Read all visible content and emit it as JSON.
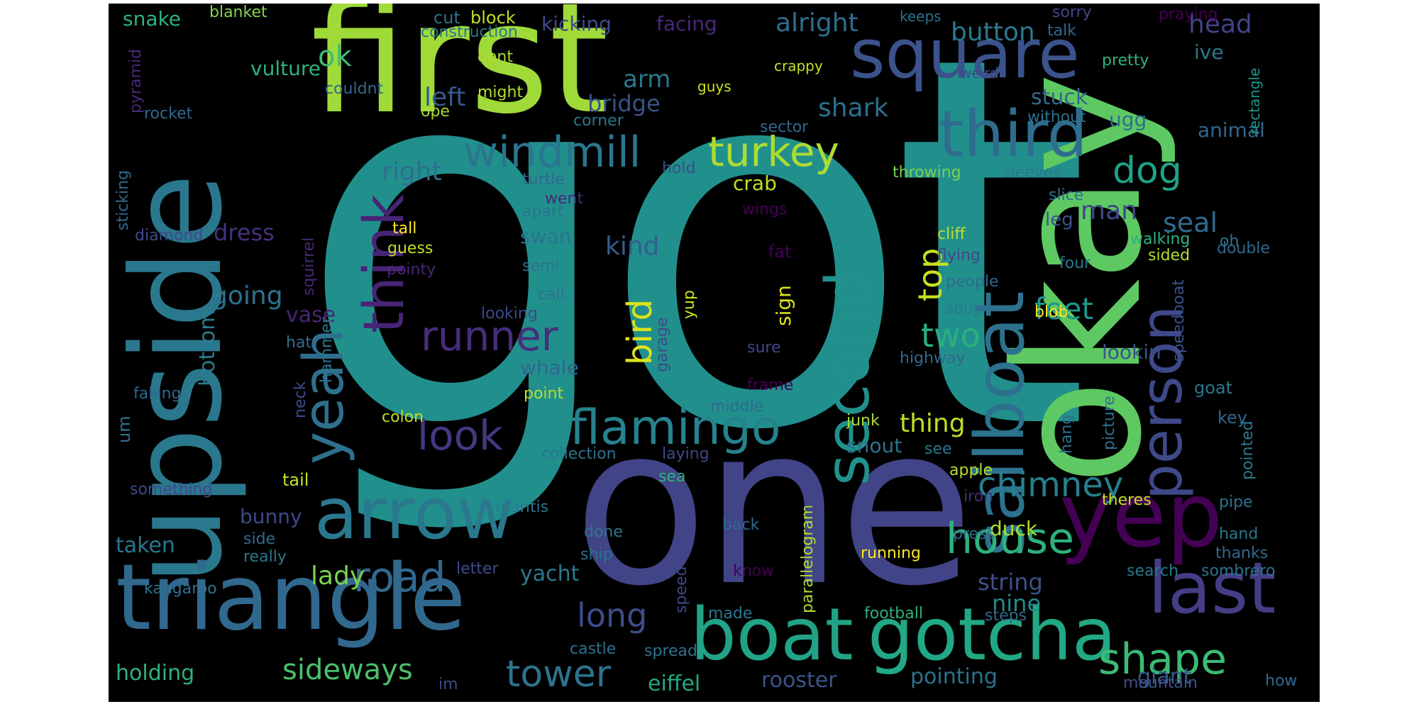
{
  "colors": {
    "background": "#000000",
    "palette": [
      "#440154",
      "#482878",
      "#3e4989",
      "#31688e",
      "#26828e",
      "#1f9e89",
      "#35b779",
      "#6ece58",
      "#b5de2b",
      "#fde725"
    ]
  },
  "words": [
    {
      "text": "got",
      "color": "#21908d"
    },
    {
      "text": "one",
      "color": "#414487"
    },
    {
      "text": "okay",
      "color": "#5ec962"
    },
    {
      "text": "first",
      "color": "#a0da39"
    },
    {
      "text": "upside",
      "color": "#2a788e"
    },
    {
      "text": "triangle",
      "color": "#31688e"
    },
    {
      "text": "boat",
      "color": "#20a386"
    },
    {
      "text": "gotcha",
      "color": "#22a884"
    },
    {
      "text": "yep",
      "color": "#440154"
    },
    {
      "text": "square",
      "color": "#3b528b"
    },
    {
      "text": "third",
      "color": "#2f6c8e"
    },
    {
      "text": "arrow",
      "color": "#2a788e"
    },
    {
      "text": "sailboat",
      "color": "#2c728e"
    },
    {
      "text": "second",
      "color": "#21918c"
    },
    {
      "text": "person",
      "color": "#3e4989"
    },
    {
      "text": "last",
      "color": "#433e85"
    },
    {
      "text": "flamingo",
      "color": "#26828e"
    },
    {
      "text": "think",
      "color": "#482475"
    },
    {
      "text": "yeah",
      "color": "#2e6f8e"
    },
    {
      "text": "windmill",
      "color": "#2a768e"
    },
    {
      "text": "house",
      "color": "#2db27d"
    },
    {
      "text": "shape",
      "color": "#3bbb75"
    },
    {
      "text": "road",
      "color": "#31688e"
    },
    {
      "text": "turkey",
      "color": "#addc30"
    },
    {
      "text": "runner",
      "color": "#472d7b"
    },
    {
      "text": "look",
      "color": "#453781"
    },
    {
      "text": "chimney",
      "color": "#277f8e"
    },
    {
      "text": "tower",
      "color": "#2c738e"
    },
    {
      "text": "dog",
      "color": "#1fa187"
    },
    {
      "text": "feet",
      "color": "#1f988b"
    },
    {
      "text": "two",
      "color": "#29af7f"
    },
    {
      "text": "top",
      "color": "#c8e020"
    },
    {
      "text": "bird",
      "color": "#dde318"
    },
    {
      "text": "long",
      "color": "#3e4c8a"
    },
    {
      "text": "sideways",
      "color": "#4ac16d"
    },
    {
      "text": "lady",
      "color": "#7ad151"
    },
    {
      "text": "bottom",
      "color": "#287d8e"
    },
    {
      "text": "kind",
      "color": "#365c8d"
    },
    {
      "text": "going",
      "color": "#2c728e"
    },
    {
      "text": "thing",
      "color": "#bddf26"
    },
    {
      "text": "ok",
      "color": "#3dbc74"
    },
    {
      "text": "button",
      "color": "#2a788e"
    },
    {
      "text": "head",
      "color": "#404588"
    },
    {
      "text": "alright",
      "color": "#2e6e8e"
    },
    {
      "text": "shark",
      "color": "#2d708e"
    },
    {
      "text": "right",
      "color": "#2e6f8e"
    },
    {
      "text": "left",
      "color": "#38588c"
    },
    {
      "text": "arm",
      "color": "#2a768e"
    },
    {
      "text": "bridge",
      "color": "#3b528b"
    },
    {
      "text": "dress",
      "color": "#46327e"
    },
    {
      "text": "crab",
      "color": "#c2df23"
    },
    {
      "text": "swan",
      "color": "#2c728e"
    },
    {
      "text": "seal",
      "color": "#2f6b8e"
    },
    {
      "text": "man",
      "color": "#3f4788"
    },
    {
      "text": "vase",
      "color": "#482576"
    },
    {
      "text": "whale",
      "color": "#31668e"
    },
    {
      "text": "duck",
      "color": "#b5de2b"
    },
    {
      "text": "string",
      "color": "#3c508b"
    },
    {
      "text": "nine",
      "color": "#238a8d"
    },
    {
      "text": "giant",
      "color": "#38598c"
    },
    {
      "text": "rooster",
      "color": "#3b528b"
    },
    {
      "text": "eiffel",
      "color": "#22a884"
    },
    {
      "text": "pointing",
      "color": "#2c728e"
    },
    {
      "text": "yacht",
      "color": "#2a788e"
    },
    {
      "text": "holding",
      "color": "#2db27d"
    },
    {
      "text": "taken",
      "color": "#2a768e"
    },
    {
      "text": "snout",
      "color": "#2c728e"
    },
    {
      "text": "stuck",
      "color": "#31688e"
    },
    {
      "text": "ugg",
      "color": "#2e6e8e"
    },
    {
      "text": "animal",
      "color": "#31688e"
    },
    {
      "text": "leg",
      "color": "#3b528b"
    },
    {
      "text": "vulture",
      "color": "#2db27d"
    },
    {
      "text": "kicking",
      "color": "#3e4989"
    },
    {
      "text": "facing",
      "color": "#482878"
    },
    {
      "text": "snake",
      "color": "#2db27d"
    },
    {
      "text": "blanket",
      "color": "#84d44b"
    },
    {
      "text": "cut",
      "color": "#2c728e"
    },
    {
      "text": "block",
      "color": "#c2df23"
    },
    {
      "text": "construction",
      "color": "#2a768e"
    },
    {
      "text": "keeps",
      "color": "#2d708e"
    },
    {
      "text": "sorry",
      "color": "#3e4989"
    },
    {
      "text": "talk",
      "color": "#31688e"
    },
    {
      "text": "praying",
      "color": "#440154"
    },
    {
      "text": "ive",
      "color": "#2a788e"
    },
    {
      "text": "pretty",
      "color": "#2db27d"
    },
    {
      "text": "rectangle",
      "color": "#1f988b"
    },
    {
      "text": "couldnt",
      "color": "#31688e"
    },
    {
      "text": "dont",
      "color": "#addc30"
    },
    {
      "text": "might",
      "color": "#b5de2b"
    },
    {
      "text": "ope",
      "color": "#a8db34"
    },
    {
      "text": "crappy",
      "color": "#c2df23"
    },
    {
      "text": "guys",
      "color": "#cde11d"
    },
    {
      "text": "weird",
      "color": "#3e4989"
    },
    {
      "text": "without",
      "color": "#2c728e"
    },
    {
      "text": "rocket",
      "color": "#31688e"
    },
    {
      "text": "corner",
      "color": "#2a788e"
    },
    {
      "text": "sector",
      "color": "#31688e"
    },
    {
      "text": "pyramid",
      "color": "#482878"
    },
    {
      "text": "hold",
      "color": "#3e4989"
    },
    {
      "text": "throwing",
      "color": "#7ad151"
    },
    {
      "text": "sleeves",
      "color": "#2a788e"
    },
    {
      "text": "turtle",
      "color": "#31688e"
    },
    {
      "text": "slice",
      "color": "#2e6e8e"
    },
    {
      "text": "went",
      "color": "#482878"
    },
    {
      "text": "wings",
      "color": "#440154"
    },
    {
      "text": "apart",
      "color": "#2c728e"
    },
    {
      "text": "sticking",
      "color": "#31688e"
    },
    {
      "text": "tall",
      "color": "#fde725"
    },
    {
      "text": "guess",
      "color": "#c2df23"
    },
    {
      "text": "diamond",
      "color": "#3e4989"
    },
    {
      "text": "squirrel",
      "color": "#482878"
    },
    {
      "text": "cliff",
      "color": "#bddf26"
    },
    {
      "text": "walking",
      "color": "#2db27d"
    },
    {
      "text": "oh",
      "color": "#2c728e"
    },
    {
      "text": "sided",
      "color": "#b5de2b"
    },
    {
      "text": "double",
      "color": "#31688e"
    },
    {
      "text": "fat",
      "color": "#440154"
    },
    {
      "text": "flying",
      "color": "#3e4989"
    },
    {
      "text": "four",
      "color": "#2a788e"
    },
    {
      "text": "semi",
      "color": "#2c728e"
    },
    {
      "text": "pointy",
      "color": "#482878"
    },
    {
      "text": "people",
      "color": "#31688e"
    },
    {
      "text": "speedboat",
      "color": "#3b528b"
    },
    {
      "text": "sign",
      "color": "#dde318"
    },
    {
      "text": "call",
      "color": "#2c728e"
    },
    {
      "text": "looking",
      "color": "#3e4989"
    },
    {
      "text": "soup",
      "color": "#2a788e"
    },
    {
      "text": "blob",
      "color": "#fde725"
    },
    {
      "text": "yup",
      "color": "#c8e020"
    },
    {
      "text": "garage",
      "color": "#3e4989"
    },
    {
      "text": "um",
      "color": "#2c728e"
    },
    {
      "text": "hat",
      "color": "#2e6e8e"
    },
    {
      "text": "hammer",
      "color": "#2a768e"
    },
    {
      "text": "sure",
      "color": "#3e4989"
    },
    {
      "text": "highway",
      "color": "#31688e"
    },
    {
      "text": "lookin",
      "color": "#3b528b"
    },
    {
      "text": "falling",
      "color": "#31688e"
    },
    {
      "text": "neck",
      "color": "#3e4989"
    },
    {
      "text": "frame",
      "color": "#440154"
    },
    {
      "text": "goat",
      "color": "#2a788e"
    },
    {
      "text": "point",
      "color": "#b5de2b"
    },
    {
      "text": "middle",
      "color": "#31688e"
    },
    {
      "text": "picture",
      "color": "#2c728e"
    },
    {
      "text": "key",
      "color": "#31688e"
    },
    {
      "text": "pointed",
      "color": "#2a788e"
    },
    {
      "text": "colon",
      "color": "#bddf26"
    },
    {
      "text": "junk",
      "color": "#a8db34"
    },
    {
      "text": "hang",
      "color": "#2c728e"
    },
    {
      "text": "see",
      "color": "#2a788e"
    },
    {
      "text": "collection",
      "color": "#2c728e"
    },
    {
      "text": "laying",
      "color": "#3e4989"
    },
    {
      "text": "apple",
      "color": "#b5de2b"
    },
    {
      "text": "tail",
      "color": "#c8e020"
    },
    {
      "text": "something",
      "color": "#3e4989"
    },
    {
      "text": "sea",
      "color": "#2db27d"
    },
    {
      "text": "parallelogram",
      "color": "#addc30"
    },
    {
      "text": "iron",
      "color": "#482878"
    },
    {
      "text": "theres",
      "color": "#c8e020"
    },
    {
      "text": "pipe",
      "color": "#2c728e"
    },
    {
      "text": "mantis",
      "color": "#2a788e"
    },
    {
      "text": "bunny",
      "color": "#3e4989"
    },
    {
      "text": "done",
      "color": "#2a788e"
    },
    {
      "text": "back",
      "color": "#31688e"
    },
    {
      "text": "side",
      "color": "#2e6e8e"
    },
    {
      "text": "press",
      "color": "#31688e"
    },
    {
      "text": "hand",
      "color": "#2a768e"
    },
    {
      "text": "really",
      "color": "#2a788e"
    },
    {
      "text": "ship",
      "color": "#2c728e"
    },
    {
      "text": "running",
      "color": "#fde725"
    },
    {
      "text": "thanks",
      "color": "#31688e"
    },
    {
      "text": "letter",
      "color": "#3e4989"
    },
    {
      "text": "know",
      "color": "#440154"
    },
    {
      "text": "search",
      "color": "#2a788e"
    },
    {
      "text": "sombrero",
      "color": "#2c728e"
    },
    {
      "text": "kangaroo",
      "color": "#2c728e"
    },
    {
      "text": "speed",
      "color": "#3e4989"
    },
    {
      "text": "made",
      "color": "#2a788e"
    },
    {
      "text": "football",
      "color": "#2db27d"
    },
    {
      "text": "steps",
      "color": "#31688e"
    },
    {
      "text": "castle",
      "color": "#2c728e"
    },
    {
      "text": "spread",
      "color": "#2c728e"
    },
    {
      "text": "im",
      "color": "#3e4989"
    },
    {
      "text": "mountain",
      "color": "#3b528b"
    },
    {
      "text": "how",
      "color": "#31688e"
    }
  ]
}
